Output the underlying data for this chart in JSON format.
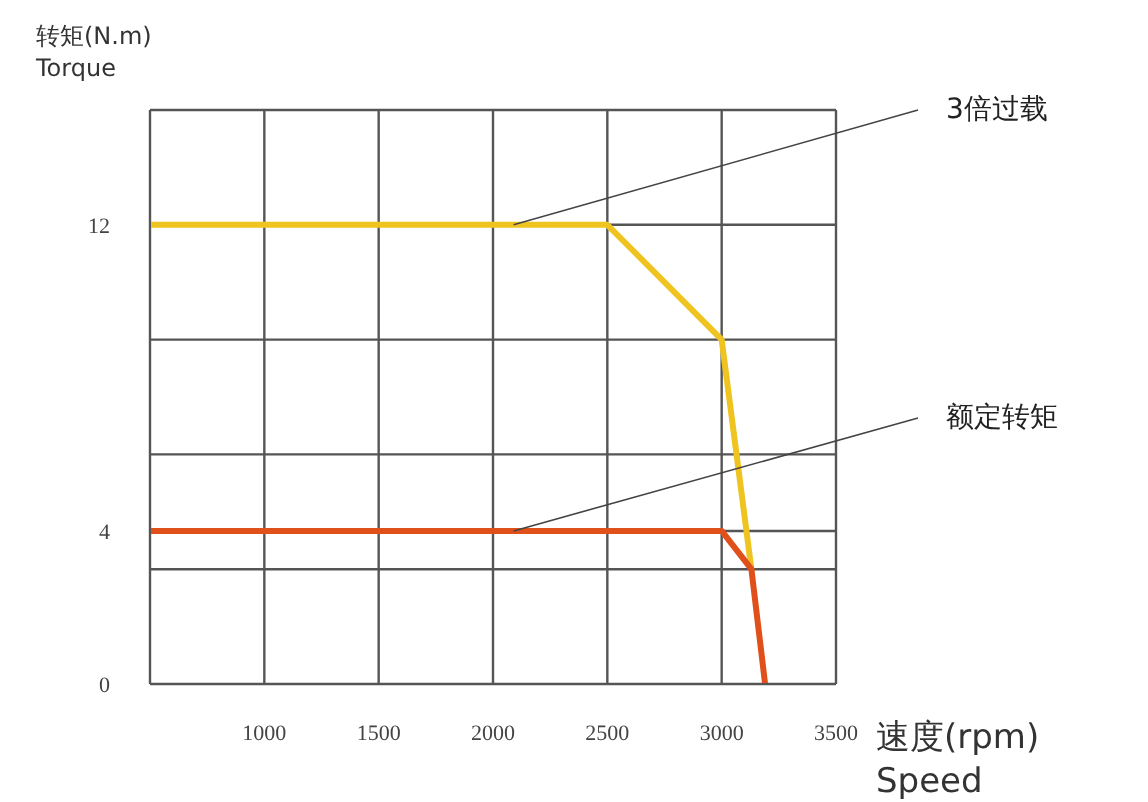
{
  "chart_data": {
    "type": "line",
    "xlabel": "速度(rpm)\nSpeed",
    "ylabel": "转矩(N.m)\nTorque",
    "xlim": [
      500,
      3500
    ],
    "xticks": [
      1000,
      1500,
      2000,
      2500,
      3000,
      3500
    ],
    "ylim": [
      0,
      15
    ],
    "yticks": [
      0,
      {
        "value": 3,
        "label": null
      },
      4,
      {
        "value": 6,
        "label": null
      },
      {
        "value": 9,
        "label": null
      },
      12,
      {
        "value": 15,
        "label": null
      }
    ],
    "grid": true,
    "marker": "none",
    "line_style": "solid",
    "series": [
      {
        "color": "#f0c420",
        "x": [
          500,
          2500,
          3000,
          3130
        ],
        "values": [
          12,
          12,
          9,
          3
        ]
      },
      {
        "color": "#e0501a",
        "x": [
          500,
          3000,
          3130,
          3190
        ],
        "values": [
          4,
          4,
          3,
          0
        ]
      }
    ],
    "annotations": [
      {
        "text": "3倍过载",
        "x": 2090,
        "y": 12
      },
      {
        "text": "额定转矩",
        "x": 2090,
        "y": 4
      }
    ]
  }
}
